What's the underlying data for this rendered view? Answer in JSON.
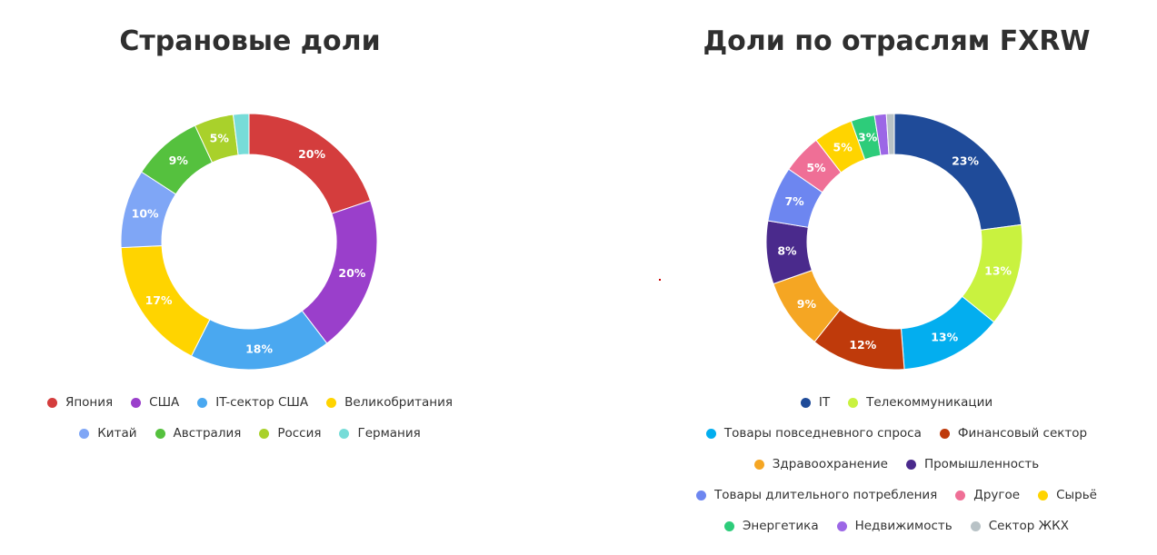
{
  "chart_data": [
    {
      "type": "pie",
      "title": "Страновые доли",
      "categories": [
        "Япония",
        "США",
        "IT-сектор США",
        "Великобритания",
        "Китай",
        "Австралия",
        "Россия",
        "Германия"
      ],
      "values": [
        20,
        20,
        18,
        17,
        10,
        9,
        5,
        2
      ],
      "labels": [
        "20%",
        "20%",
        "18%",
        "17%",
        "10%",
        "9%",
        "5%",
        ""
      ],
      "colors": [
        "#d43d3d",
        "#9a3fcb",
        "#4aa8f0",
        "#ffd400",
        "#7fa6f6",
        "#55c13e",
        "#a9d12b",
        "#77dcd8"
      ],
      "legend_rows": [
        [
          0,
          1,
          2,
          3
        ],
        [
          4,
          5,
          6,
          7
        ]
      ],
      "legend": "bottom"
    },
    {
      "type": "pie",
      "title": "Доли по отраслям FXRW",
      "categories": [
        "IT",
        "Телекоммуникации",
        "Товары повседневного спроса",
        "Финансовый сектор",
        "Здравоохранение",
        "Промышленность",
        "Товары длительного потребления",
        "Другое",
        "Сырьё",
        "Энергетика",
        "Недвижимость",
        "Сектор ЖКХ"
      ],
      "values": [
        23,
        13,
        13,
        12,
        9,
        8,
        7,
        5,
        5,
        3,
        1.5,
        1
      ],
      "labels": [
        "23%",
        "13%",
        "13%",
        "12%",
        "9%",
        "8%",
        "7%",
        "5%",
        "5%",
        "3%",
        "",
        ""
      ],
      "colors": [
        "#1f4b99",
        "#c9f23f",
        "#03aeef",
        "#bf3a0b",
        "#f5a623",
        "#4a2a8c",
        "#6d86f0",
        "#ef6f96",
        "#ffd400",
        "#2dcc7a",
        "#9c67e6",
        "#b8c2c6"
      ],
      "legend_rows": [
        [
          0,
          1
        ],
        [
          2,
          3
        ],
        [
          4,
          5
        ],
        [
          6,
          7,
          8
        ],
        [
          9,
          10,
          11
        ]
      ],
      "legend": "bottom"
    }
  ]
}
